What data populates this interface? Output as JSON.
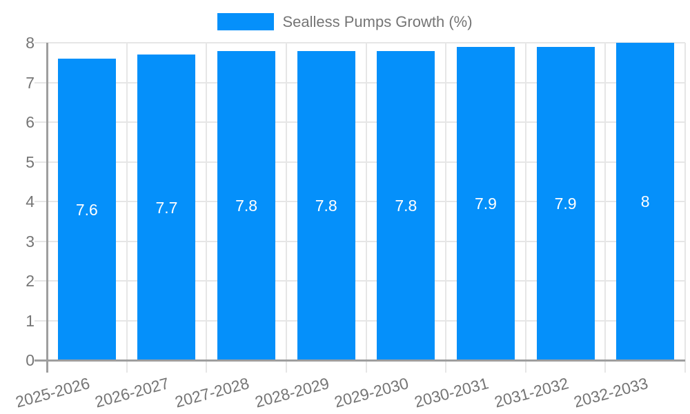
{
  "chart_data": {
    "type": "bar",
    "title": "",
    "legend": {
      "label": "Sealless Pumps Growth (%)",
      "position": "top"
    },
    "categories": [
      "2025-2026",
      "2026-2027",
      "2027-2028",
      "2028-2029",
      "2029-2030",
      "2030-2031",
      "2031-2032",
      "2032-2033"
    ],
    "values": [
      7.6,
      7.7,
      7.8,
      7.8,
      7.8,
      7.9,
      7.9,
      8
    ],
    "value_labels": [
      "7.6",
      "7.7",
      "7.8",
      "7.8",
      "7.8",
      "7.9",
      "7.9",
      "8"
    ],
    "xlabel": "",
    "ylabel": "",
    "ylim": [
      0,
      8
    ],
    "y_ticks": [
      0,
      1,
      2,
      3,
      4,
      5,
      6,
      7,
      8
    ],
    "grid": true,
    "x_label_rotation_deg": -15,
    "colors": {
      "bar": "#0590fa",
      "axis_text": "#757575",
      "grid_line": "#e6e6e6",
      "axis_line": "#9e9e9e",
      "bar_label": "#ffffff",
      "background": "#ffffff"
    }
  }
}
